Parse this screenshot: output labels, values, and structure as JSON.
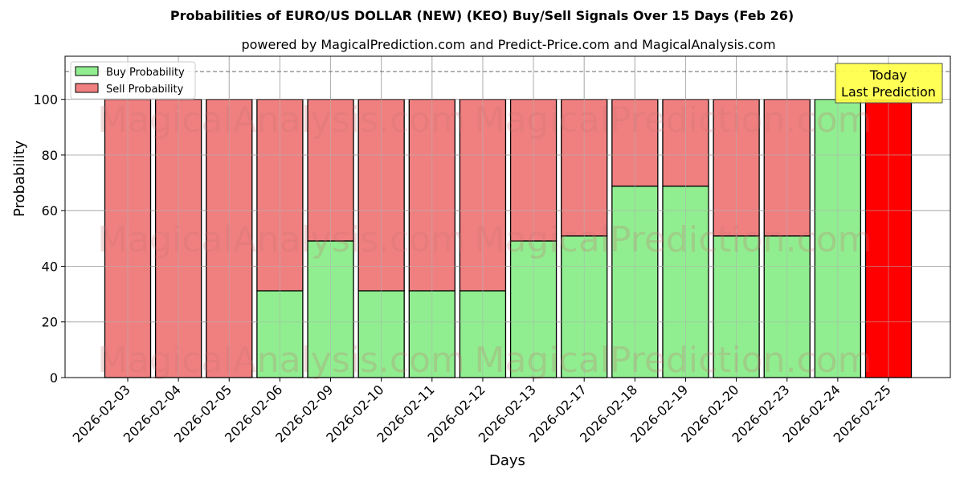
{
  "title": "Probabilities of EURO/US DOLLAR (NEW) (KEO) Buy/Sell Signals Over 15 Days (Feb 26)",
  "subtitle": "powered by MagicalPrediction.com and Predict-Price.com and MagicalAnalysis.com",
  "watermarks": [
    "MagicalAnalysis.com",
    "MagicalPrediction.com"
  ],
  "annotation": {
    "line1": "Today",
    "line2": "Last Prediction",
    "color": "#ffff44"
  },
  "colors": {
    "buy": "#90ee90",
    "sell": "#f08080",
    "today": "#ff0000"
  },
  "chart_data": {
    "type": "bar",
    "stacked": true,
    "title": "Probabilities of EURO/US DOLLAR (NEW) (KEO) Buy/Sell Signals Over 15 Days (Feb 26)",
    "subtitle": "powered by MagicalPrediction.com and Predict-Price.com and MagicalAnalysis.com",
    "xlabel": "Days",
    "ylabel": "Probability",
    "ylim": [
      0,
      115.5
    ],
    "yticks": [
      0,
      20,
      40,
      60,
      80,
      100
    ],
    "reference_line": 110,
    "grid": true,
    "legend_position": "upper left",
    "categories": [
      "2026-02-03",
      "2026-02-04",
      "2026-02-05",
      "2026-02-06",
      "2026-02-09",
      "2026-02-10",
      "2026-02-11",
      "2026-02-12",
      "2026-02-13",
      "2026-02-17",
      "2026-02-18",
      "2026-02-19",
      "2026-02-20",
      "2026-02-23",
      "2026-02-24",
      "2026-02-25"
    ],
    "series": [
      {
        "name": "Buy Probability",
        "values": [
          0,
          0,
          0,
          31.2,
          49.1,
          31.2,
          31.2,
          31.2,
          49.1,
          50.9,
          68.8,
          68.8,
          50.9,
          50.9,
          100,
          0
        ]
      },
      {
        "name": "Sell Probability",
        "values": [
          100,
          100,
          100,
          68.8,
          50.9,
          68.8,
          68.8,
          68.8,
          50.9,
          49.1,
          31.2,
          31.2,
          49.1,
          49.1,
          0,
          100
        ]
      }
    ],
    "highlight": {
      "category": "2026-02-25",
      "label": "Today Last Prediction"
    }
  }
}
